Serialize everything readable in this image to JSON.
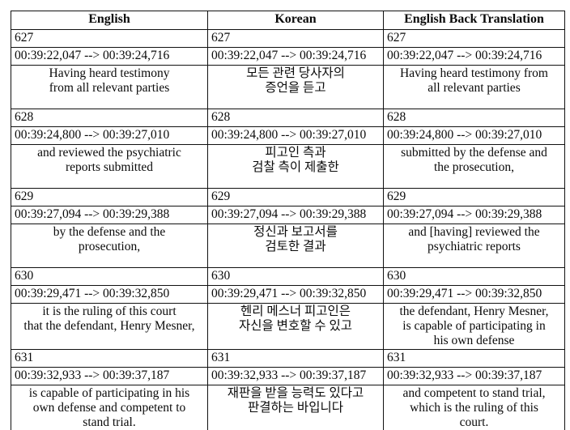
{
  "table": {
    "headers": [
      "English",
      "Korean",
      "English Back Translation"
    ],
    "blocks": [
      {
        "index": "627",
        "timestamp": "00:39:22,047 --> 00:39:24,716",
        "english": "Having heard testimony\nfrom all relevant parties",
        "korean": "모든 관련 당사자의\n증언을 듣고",
        "back_translation": "Having heard testimony from\nall relevant parties"
      },
      {
        "index": "628",
        "timestamp": "00:39:24,800 --> 00:39:27,010",
        "english": "and reviewed the psychiatric\nreports submitted",
        "korean": "피고인 측과\n검찰 측이 제출한",
        "back_translation": "submitted by the defense and\nthe prosecution,"
      },
      {
        "index": "629",
        "timestamp": "00:39:27,094 --> 00:39:29,388",
        "english": "by the defense and the\nprosecution,",
        "korean": "정신과 보고서를\n검토한 결과",
        "back_translation": "and [having] reviewed the\npsychiatric reports"
      },
      {
        "index": "630",
        "timestamp": "00:39:29,471 --> 00:39:32,850",
        "english": "it is the ruling of this court\nthat the defendant, Henry Mesner,",
        "korean": "헨리 메스너 피고인은\n자신을 변호할 수 있고",
        "back_translation": "the defendant, Henry Mesner,\nis capable of participating in\nhis own defense"
      },
      {
        "index": "631",
        "timestamp": "00:39:32,933 --> 00:39:37,187",
        "english": "is capable of participating in his\nown defense and competent to\nstand trial.",
        "korean": "재판을 받을 능력도 있다고\n판결하는 바입니다",
        "back_translation": "and competent to stand trial,\nwhich is the ruling of this\ncourt."
      }
    ]
  }
}
